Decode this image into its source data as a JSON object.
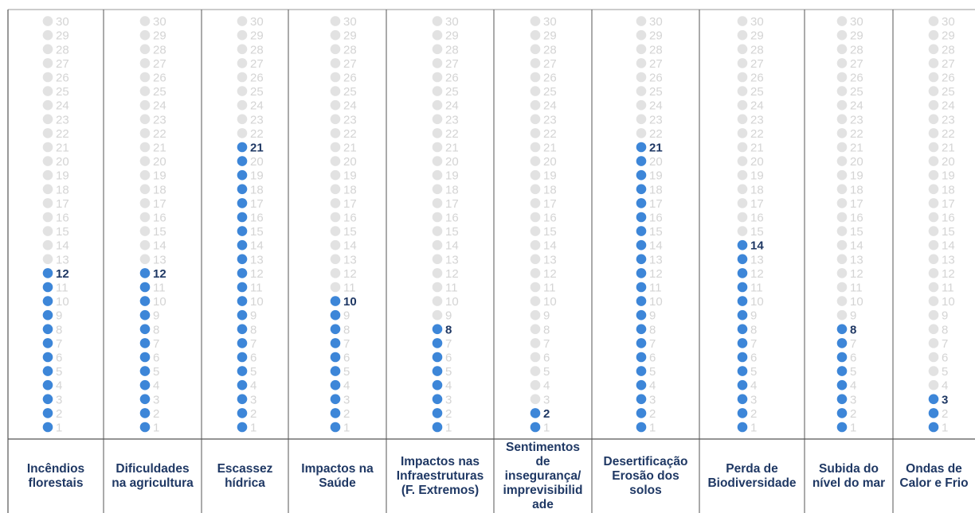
{
  "chart_data": {
    "type": "dot-column",
    "scale_max": 30,
    "colors": {
      "filled": "#3d86d8",
      "empty": "#e2e2e2",
      "label": "#1f3864",
      "faint_number": "#d4d4d4"
    },
    "categories": [
      "Incêndios florestais",
      "Dificuldades na agricultura",
      "Escassez hídrica",
      "Impactos na Saúde",
      "Impactos nas Infraestruturas (F. Extremos)",
      "Sentimentos de insegurança/ imprevisibilidade",
      "Desertificação Erosão dos solos",
      "Perda de Biodiversidade",
      "Subida do nível do mar",
      "Ondas de Calor e Frio"
    ],
    "label_lines": [
      [
        "Incêndios",
        "florestais"
      ],
      [
        "Dificuldades",
        "na agricultura"
      ],
      [
        "Escassez",
        "hídrica"
      ],
      [
        "Impactos na",
        "Saúde"
      ],
      [
        "Impactos nas",
        "Infraestruturas",
        "(F. Extremos)"
      ],
      [
        "Sentimentos",
        "de",
        "insegurança/",
        "imprevisibilid",
        "ade"
      ],
      [
        "Desertificação",
        "Erosão dos",
        "solos"
      ],
      [
        "Perda de",
        "Biodiversidade"
      ],
      [
        "Subida do",
        "nível do mar"
      ],
      [
        "Ondas de",
        "Calor e Frio"
      ]
    ],
    "values": [
      12,
      12,
      21,
      10,
      8,
      2,
      21,
      14,
      8,
      3
    ]
  }
}
